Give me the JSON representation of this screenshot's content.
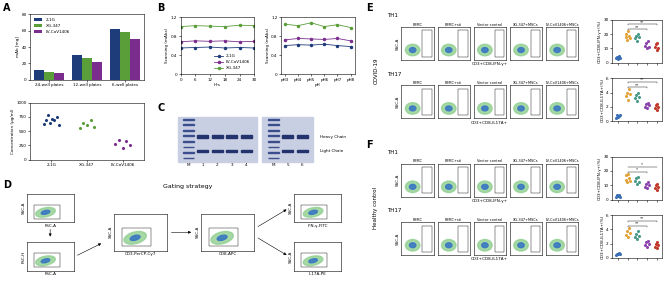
{
  "chart_data": [
    {
      "panel": "A",
      "type": "bar",
      "y_label": "mAb [mg]",
      "categories": [
        "24-well plates",
        "12-well plates",
        "6-well plates"
      ],
      "series": [
        {
          "name": "2-1G",
          "color": "#1f3c7a",
          "values": [
            12,
            30,
            62
          ]
        },
        {
          "name": "XG-347",
          "color": "#5a9e3a",
          "values": [
            10,
            26,
            58
          ]
        },
        {
          "name": "LV-CoV1406",
          "color": "#7b2d8e",
          "values": [
            8,
            22,
            50
          ]
        }
      ],
      "ylim": [
        0,
        80
      ],
      "yticks": [
        0,
        20,
        40,
        60,
        80
      ],
      "legend": "upper left"
    },
    {
      "type": "dot",
      "y_label": "Concentration (μg/ml)",
      "categories": [
        "2-1G",
        "XG-347",
        "LV-CoV1406"
      ],
      "colors": [
        "#1f3c7a",
        "#5a9e3a",
        "#7b2d8e"
      ],
      "values": [
        [
          620,
          700,
          780,
          650,
          720,
          690,
          750,
          600
        ],
        [
          560,
          640,
          600,
          700,
          580
        ],
        [
          280,
          350,
          200,
          320,
          250
        ]
      ],
      "ylim": [
        0,
        1000
      ],
      "yticks": [
        0,
        250,
        500,
        750,
        1000
      ]
    },
    {
      "panel": "B",
      "type": "line",
      "x_label": "Hrs",
      "y_label": "Scanning (mAbs)",
      "x": [
        0,
        6,
        12,
        18,
        24,
        30
      ],
      "xlim": [
        0,
        30
      ],
      "xticks": [
        0,
        6,
        12,
        18,
        24,
        30
      ],
      "series": [
        {
          "name": "2-1G",
          "color": "#1f3c7a",
          "marker": "o",
          "values": [
            0.55,
            0.56,
            0.57,
            0.55,
            0.56,
            0.55
          ]
        },
        {
          "name": "LV-CoV1406",
          "color": "#7b2d8e",
          "marker": "o",
          "values": [
            0.68,
            0.7,
            0.69,
            0.7,
            0.68,
            0.69
          ]
        },
        {
          "name": "XG-347",
          "color": "#5a9e3a",
          "marker": "o",
          "values": [
            1.0,
            1.02,
            1.01,
            1.0,
            1.03,
            1.02
          ]
        }
      ],
      "ylim": [
        0,
        1.2
      ],
      "yticks": [
        0,
        0.4,
        0.8,
        1.2
      ],
      "legend": "lower right"
    },
    {
      "type": "line",
      "x_label": "pH",
      "y_label": "Scanning (mAbs)",
      "categories": [
        "pH3",
        "pH4",
        "pH5",
        "pH6",
        "pH7",
        "pH8"
      ],
      "series": [
        {
          "name": "2-1G",
          "color": "#1f3c7a",
          "marker": "o",
          "values": [
            0.6,
            0.62,
            0.61,
            0.63,
            0.6,
            0.58
          ]
        },
        {
          "name": "LV-CoV1406",
          "color": "#7b2d8e",
          "marker": "o",
          "values": [
            0.72,
            0.75,
            0.74,
            0.73,
            0.75,
            0.7
          ]
        },
        {
          "name": "XG-347",
          "color": "#5a9e3a",
          "marker": "o",
          "values": [
            1.05,
            1.02,
            1.08,
            1.0,
            1.04,
            0.98
          ]
        }
      ],
      "ylim": [
        0,
        1.2
      ],
      "yticks": [
        0,
        0.4,
        0.8,
        1.2
      ]
    }
  ],
  "gel": {
    "panel": "C",
    "gels": [
      {
        "lanes": [
          "M",
          "1",
          "2",
          "3",
          "4"
        ]
      },
      {
        "lanes": [
          "M",
          "5",
          "6"
        ]
      }
    ],
    "bands": [
      "Heavy Chain",
      "Light Chain"
    ]
  },
  "gating": {
    "panel": "D",
    "title": "Gating strategy",
    "plots": [
      {
        "x_label": "FSC-A",
        "y_label": "SSC-A"
      },
      {
        "x_label": "FSC-A",
        "y_label": "FSC-H"
      },
      {
        "x_label": "CD3-PerCP-Cy7",
        "y_label": "SSC-A"
      },
      {
        "x_label": "CD8-APC",
        "y_label": "SSC-A"
      },
      {
        "x_label": "IFN-γ-FITC",
        "y_label": "SSC-A"
      },
      {
        "x_label": "IL17A-PE",
        "y_label": "SSC-A"
      }
    ]
  },
  "flow": {
    "groups": [
      "PBMC",
      "PBMC+sti",
      "Vector control",
      "XG-347+MSCs",
      "LV-CoV1406+MSCs"
    ],
    "y_label": "SSC-A",
    "sections": [
      {
        "panel": "E",
        "name": "COVID-19",
        "rows": [
          {
            "name": "TH1",
            "x_label": "CD3+CD8-IFN-γ+",
            "chart_data": {
              "type": "dot",
              "y_label": "CD3+CD8-IFN-γ+(%)",
              "tick_labels": "y",
              "categories": [
                "PBMC",
                "PBMC+sti",
                "Vector control",
                "XG-347+MSCs",
                "LV-CoV1406+MSCs"
              ],
              "colors": [
                "#3a6fb5",
                "#e3a33b",
                "#4a9a8a",
                "#8e44ad",
                "#c0392b"
              ],
              "values": [
                [
                  3,
                  4,
                  2.5,
                  5,
                  3.5
                ],
                [
                  18,
                  20,
                  16,
                  22,
                  19,
                  17
                ],
                [
                  17,
                  19,
                  15,
                  20,
                  18
                ],
                [
                  12,
                  14,
                  10,
                  15,
                  11
                ],
                [
                  11,
                  13,
                  9,
                  14,
                  10
                ]
              ],
              "ylim": [
                0,
                30
              ],
              "yticks": [
                0,
                10,
                20,
                30
              ],
              "annotations": [
                {
                  "text": "**",
                  "between": [
                    "PBMC+sti",
                    "XG-347+MSCs"
                  ]
                },
                {
                  "text": "**",
                  "between": [
                    "PBMC+sti",
                    "LV-CoV1406+MSCs"
                  ]
                }
              ]
            }
          },
          {
            "name": "TH17",
            "x_label": "CD3+CD8-IL17A+",
            "chart_data": {
              "type": "dot",
              "y_label": "CD3+CD8-IL17A+(%)",
              "tick_labels": "y",
              "categories": [
                "PBMC",
                "PBMC+sti",
                "Vector control",
                "XG-347+MSCs",
                "LV-CoV1406+MSCs"
              ],
              "colors": [
                "#3a6fb5",
                "#e3a33b",
                "#4a9a8a",
                "#8e44ad",
                "#c0392b"
              ],
              "values": [
                [
                  0.5,
                  0.8,
                  0.6,
                  0.7,
                  0.9
                ],
                [
                  3.5,
                  4,
                  3,
                  4.5,
                  3.8
                ],
                [
                  3.2,
                  3.6,
                  2.8,
                  4,
                  3.4
                ],
                [
                  2,
                  2.4,
                  1.8,
                  2.6,
                  2.2
                ],
                [
                  1.8,
                  2.2,
                  1.5,
                  2.4,
                  2
                ]
              ],
              "ylim": [
                0,
                6
              ],
              "yticks": [
                0,
                2,
                4,
                6
              ],
              "annotations": [
                {
                  "text": "**",
                  "between": [
                    "PBMC+sti",
                    "XG-347+MSCs"
                  ]
                },
                {
                  "text": "**",
                  "between": [
                    "PBMC+sti",
                    "LV-CoV1406+MSCs"
                  ]
                }
              ]
            }
          }
        ]
      },
      {
        "panel": "F",
        "name": "Healthy control",
        "rows": [
          {
            "name": "TH1",
            "x_label": "CD3+CD8-IFN-γ+",
            "chart_data": {
              "type": "dot",
              "y_label": "CD3+CD8-IFN-γ+(%)",
              "tick_labels": "y",
              "categories": [
                "PBMC",
                "PBMC+sti",
                "Vector control",
                "XG-347+MSCs",
                "LV-CoV1406+MSCs"
              ],
              "colors": [
                "#3a6fb5",
                "#e3a33b",
                "#4a9a8a",
                "#8e44ad",
                "#c0392b"
              ],
              "values": [
                [
                  2,
                  3,
                  2.5,
                  3,
                  2
                ],
                [
                  14,
                  17,
                  12,
                  18,
                  15,
                  13
                ],
                [
                  13,
                  15,
                  11,
                  16,
                  12
                ],
                [
                  9,
                  11,
                  8,
                  12,
                  10
                ],
                [
                  8,
                  10,
                  7,
                  11,
                  9
                ]
              ],
              "ylim": [
                0,
                30
              ],
              "yticks": [
                0,
                10,
                20,
                30
              ],
              "annotations": [
                {
                  "text": "*",
                  "between": [
                    "PBMC+sti",
                    "XG-347+MSCs"
                  ]
                },
                {
                  "text": "*",
                  "between": [
                    "PBMC+sti",
                    "LV-CoV1406+MSCs"
                  ]
                }
              ]
            }
          },
          {
            "name": "TH17",
            "x_label": "CD3+CD8-IL17A+",
            "chart_data": {
              "type": "dot",
              "y_label": "CD3+CD8-IL17A+(%)",
              "tick_labels": "y",
              "categories": [
                "PBMC",
                "PBMC+sti",
                "Vector control",
                "XG-347+MSCs",
                "LV-CoV1406+MSCs"
              ],
              "colors": [
                "#3a6fb5",
                "#e3a33b",
                "#4a9a8a",
                "#8e44ad",
                "#c0392b"
              ],
              "values": [
                [
                  0.4,
                  0.6,
                  0.5,
                  0.7,
                  0.5
                ],
                [
                  3.2,
                  3.8,
                  2.9,
                  4.2,
                  3.5
                ],
                [
                  3,
                  3.4,
                  2.6,
                  3.8,
                  3.1
                ],
                [
                  1.8,
                  2.2,
                  1.6,
                  2.4,
                  2
                ],
                [
                  1.6,
                  2,
                  1.4,
                  2.2,
                  1.8
                ]
              ],
              "ylim": [
                0,
                6
              ],
              "yticks": [
                0,
                2,
                4,
                6
              ],
              "annotations": [
                {
                  "text": "**",
                  "between": [
                    "PBMC+sti",
                    "XG-347+MSCs"
                  ]
                },
                {
                  "text": "**",
                  "between": [
                    "PBMC+sti",
                    "LV-CoV1406+MSCs"
                  ]
                }
              ]
            }
          }
        ]
      }
    ]
  }
}
